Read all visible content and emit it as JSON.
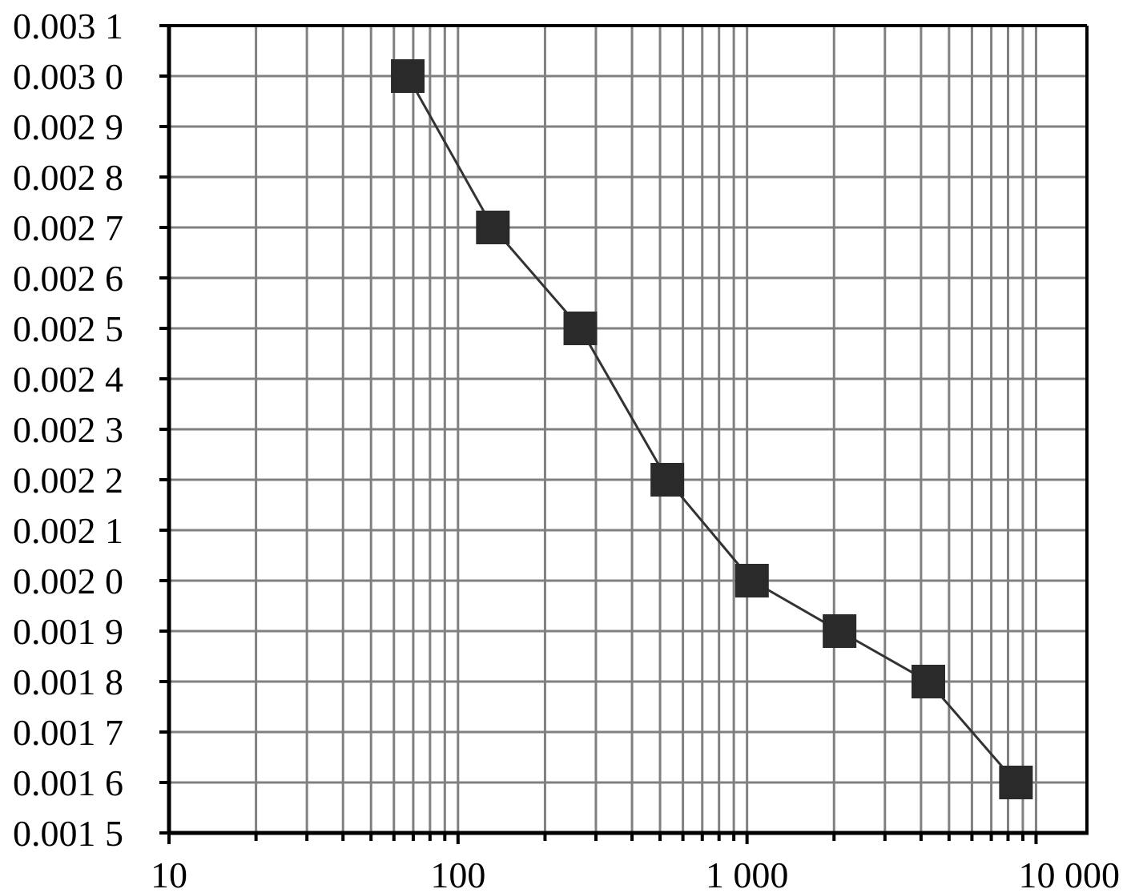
{
  "chart_data": {
    "type": "line",
    "title": "",
    "xlabel": "",
    "ylabel": "",
    "x_scale": "log",
    "xlim": [
      10,
      15000
    ],
    "ylim": [
      0.0015,
      0.0031
    ],
    "grid": true,
    "x_ticks": [
      {
        "value": 10,
        "label": "10"
      },
      {
        "value": 100,
        "label": "100"
      },
      {
        "value": 1000,
        "label": "1 000"
      },
      {
        "value": 10000,
        "label": "10 000"
      }
    ],
    "y_ticks": [
      {
        "value": 0.0031,
        "label": "0.003 1"
      },
      {
        "value": 0.003,
        "label": "0.003 0"
      },
      {
        "value": 0.0029,
        "label": "0.002 9"
      },
      {
        "value": 0.0028,
        "label": "0.002 8"
      },
      {
        "value": 0.0027,
        "label": "0.002 7"
      },
      {
        "value": 0.0026,
        "label": "0.002 6"
      },
      {
        "value": 0.0025,
        "label": "0.002 5"
      },
      {
        "value": 0.0024,
        "label": "0.002 4"
      },
      {
        "value": 0.0023,
        "label": "0.002 3"
      },
      {
        "value": 0.0022,
        "label": "0.002 2"
      },
      {
        "value": 0.0021,
        "label": "0.002 1"
      },
      {
        "value": 0.002,
        "label": "0.002 0"
      },
      {
        "value": 0.0019,
        "label": "0.001 9"
      },
      {
        "value": 0.0018,
        "label": "0.001 8"
      },
      {
        "value": 0.0017,
        "label": "0.001 7"
      },
      {
        "value": 0.0016,
        "label": "0.001 6"
      },
      {
        "value": 0.0015,
        "label": "0.001 5"
      }
    ],
    "series": [
      {
        "x": [
          67,
          132,
          265,
          530,
          1040,
          2090,
          4240,
          8520
        ],
        "y": [
          0.003,
          0.0027,
          0.0025,
          0.0022,
          0.002,
          0.0019,
          0.0018,
          0.0016
        ]
      }
    ],
    "colors": {
      "grid": "#808080",
      "axis": "#000000",
      "line": "#333333",
      "marker": "#2a2a2a"
    }
  }
}
